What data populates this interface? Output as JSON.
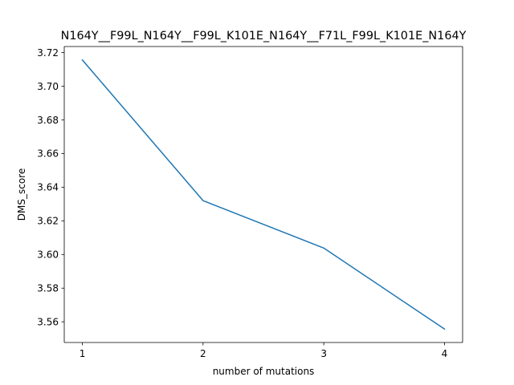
{
  "chart_data": {
    "type": "line",
    "title": "N164Y__F99L_N164Y__F99L_K101E_N164Y__F71L_F99L_K101E_N164Y",
    "xlabel": "number of mutations",
    "ylabel": "DMS_score",
    "x": [
      1,
      2,
      3,
      4
    ],
    "xticks": [
      "1",
      "2",
      "3",
      "4"
    ],
    "xlim": [
      0.85,
      4.15
    ],
    "ylim": [
      3.5477,
      3.7236
    ],
    "yticks": [
      "3.56",
      "3.58",
      "3.60",
      "3.62",
      "3.64",
      "3.66",
      "3.68",
      "3.70",
      "3.72"
    ],
    "grid": false,
    "legend": "none",
    "series": [
      {
        "values": [
          3.7156,
          3.632,
          3.6038,
          3.5557
        ],
        "color": "#1f77b4"
      }
    ]
  }
}
